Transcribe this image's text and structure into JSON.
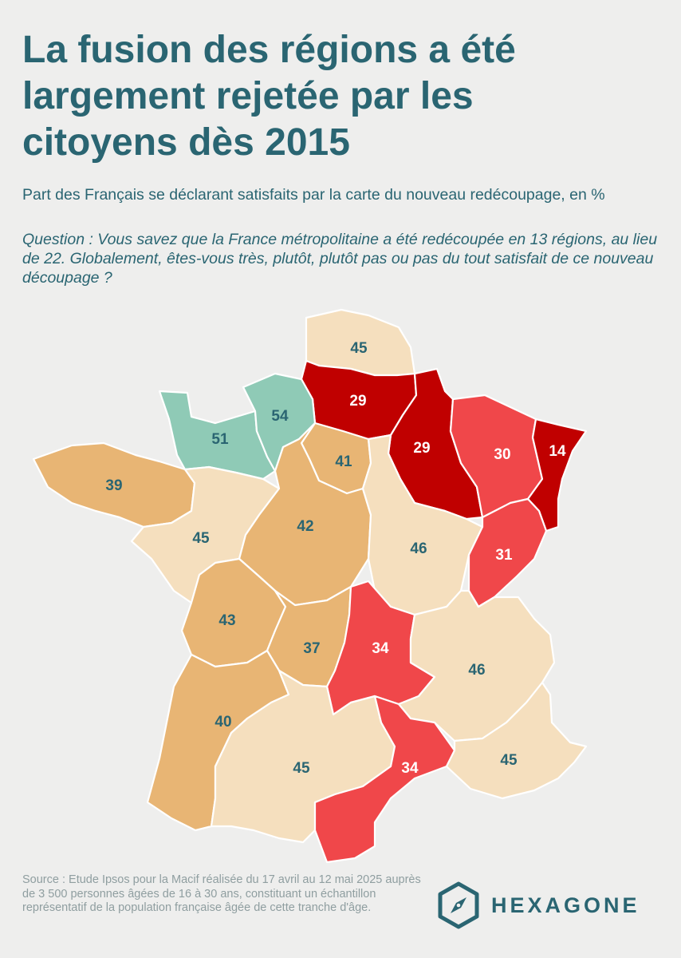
{
  "title_lines": [
    "La fusion des régions a été",
    "largement rejetée par les",
    "citoyens dès 2015"
  ],
  "subtitle": "Part des Français se déclarant satisfaits par la carte du nouveau redécoupage, en %",
  "question": "Question : Vous savez que la France métropolitaine a été redécoupée en 13 régions, au lieu de 22. Globalement, êtes-vous très, plutôt, plutôt pas ou pas du tout satisfait de ce nouveau découpage ?",
  "colors": {
    "very_low": "#c00000",
    "low": "#f0474a",
    "green": "#8fcab6",
    "orange": "#e8b574",
    "light": "#f5dfbe",
    "text_dark": "#2a6572",
    "text_light": "#ffffff"
  },
  "regions": [
    {
      "id": "nord-pas-de-calais",
      "value": 45,
      "color": "light"
    },
    {
      "id": "picardie",
      "value": 29,
      "color": "very_low"
    },
    {
      "id": "champagne-ardenne",
      "value": 29,
      "color": "very_low"
    },
    {
      "id": "lorraine",
      "value": 30,
      "color": "low"
    },
    {
      "id": "alsace",
      "value": 14,
      "color": "very_low"
    },
    {
      "id": "basse-normandie",
      "value": 51,
      "color": "green"
    },
    {
      "id": "haute-normandie",
      "value": 54,
      "color": "green"
    },
    {
      "id": "ile-de-france",
      "value": 41,
      "color": "orange"
    },
    {
      "id": "bretagne",
      "value": 39,
      "color": "orange"
    },
    {
      "id": "pays-de-la-loire",
      "value": 45,
      "color": "light"
    },
    {
      "id": "centre",
      "value": 42,
      "color": "orange"
    },
    {
      "id": "bourgogne",
      "value": 46,
      "color": "light"
    },
    {
      "id": "franche-comte",
      "value": 31,
      "color": "low"
    },
    {
      "id": "poitou-charentes",
      "value": 43,
      "color": "orange"
    },
    {
      "id": "limousin",
      "value": 37,
      "color": "orange"
    },
    {
      "id": "auvergne",
      "value": 34,
      "color": "low"
    },
    {
      "id": "rhone-alpes",
      "value": 46,
      "color": "light"
    },
    {
      "id": "aquitaine",
      "value": 40,
      "color": "orange"
    },
    {
      "id": "midi-pyrenees",
      "value": 45,
      "color": "light"
    },
    {
      "id": "languedoc-roussillon",
      "value": 34,
      "color": "low"
    },
    {
      "id": "provence-alpes-cote-dazur",
      "value": 45,
      "color": "light"
    }
  ],
  "source": "Source : Etude Ipsos pour la Macif réalisée du 17 avril au 12 mai 2025 auprès de 3 500 personnes âgées de 16 à 30 ans, constituant un échantillon représentatif de la population française âgée de cette tranche d'âge.",
  "logo": {
    "text": "HEXAGONE",
    "icon": "compass-hexagon-icon"
  }
}
